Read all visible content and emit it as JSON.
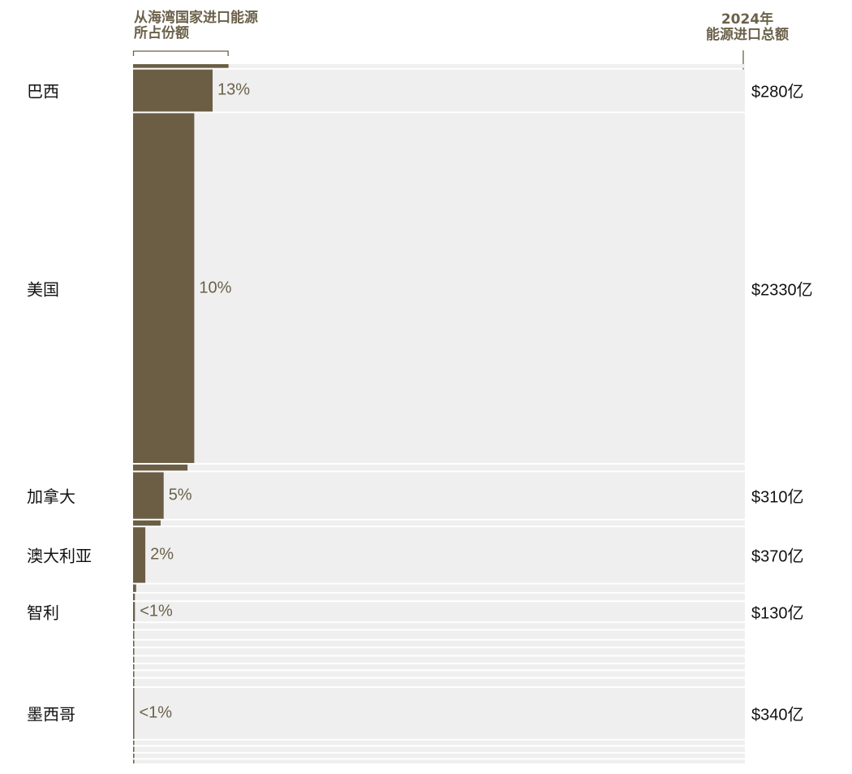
{
  "header": {
    "left_line1": "从海湾国家进口能源",
    "left_line2": "所占份额",
    "right_line1": "2024年",
    "right_line2": "能源进口总额"
  },
  "colors": {
    "bar": "#6b5e45",
    "track": "#efefef",
    "text_accent": "#6b614a"
  },
  "chart_data": {
    "type": "bar",
    "title": "",
    "xlabel": "从海湾国家进口能源所占份额",
    "ylabel": "2024年能源进口总额",
    "xlim": [
      0,
      100
    ],
    "labeled_rows": [
      {
        "country": "巴西",
        "share_pct": 13,
        "share_label": "13%",
        "total_label": "$280亿"
      },
      {
        "country": "美国",
        "share_pct": 10,
        "share_label": "10%",
        "total_label": "$2330亿"
      },
      {
        "country": "加拿大",
        "share_pct": 5,
        "share_label": "5%",
        "total_label": "$310亿"
      },
      {
        "country": "澳大利亚",
        "share_pct": 2,
        "share_label": "2%",
        "total_label": "$370亿"
      },
      {
        "country": "智利",
        "share_pct": 0.3,
        "share_label": "<1%",
        "total_label": "$130亿"
      },
      {
        "country": "墨西哥",
        "share_pct": 0.2,
        "share_label": "<1%",
        "total_label": "$340亿"
      }
    ],
    "rows": [
      {
        "share_pct": 15.6,
        "total_bn": 25
      },
      {
        "share_pct": 13,
        "total_bn": 280,
        "label_index": 0
      },
      {
        "share_pct": 10,
        "total_bn": 2330,
        "label_index": 1
      },
      {
        "share_pct": 8.9,
        "total_bn": 40
      },
      {
        "share_pct": 5,
        "total_bn": 310,
        "label_index": 2
      },
      {
        "share_pct": 4.5,
        "total_bn": 35
      },
      {
        "share_pct": 2,
        "total_bn": 370,
        "label_index": 3
      },
      {
        "share_pct": 0.5,
        "total_bn": 50
      },
      {
        "share_pct": 0.3,
        "total_bn": 45
      },
      {
        "share_pct": 0.3,
        "total_bn": 130,
        "label_index": 4
      },
      {
        "share_pct": 0.2,
        "total_bn": 40
      },
      {
        "share_pct": 0.2,
        "total_bn": 55
      },
      {
        "share_pct": 0.2,
        "total_bn": 40
      },
      {
        "share_pct": 0.2,
        "total_bn": 45
      },
      {
        "share_pct": 0.2,
        "total_bn": 40
      },
      {
        "share_pct": 0.2,
        "total_bn": 35
      },
      {
        "share_pct": 0.2,
        "total_bn": 40
      },
      {
        "share_pct": 0.2,
        "total_bn": 50
      },
      {
        "share_pct": 0.2,
        "total_bn": 340,
        "label_index": 5
      },
      {
        "share_pct": 0.2,
        "total_bn": 30
      },
      {
        "share_pct": 0.2,
        "total_bn": 35
      },
      {
        "share_pct": 0.2,
        "total_bn": 30
      },
      {
        "share_pct": 0.2,
        "total_bn": 25
      }
    ]
  }
}
